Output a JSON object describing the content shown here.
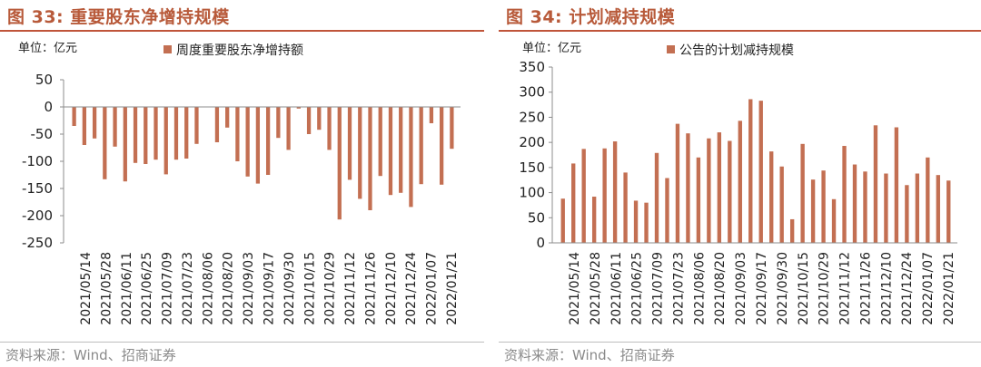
{
  "charts": [
    {
      "title": "图 33:  重要股东净增持规模",
      "unit": "单位：亿元",
      "source": "资料来源：Wind、招商证券"
    },
    {
      "title": "图 34:  计划减持规模",
      "unit": "单位：亿元",
      "source": "资料来源：Wind、招商证券"
    }
  ],
  "chart_data": [
    {
      "type": "bar",
      "color": "#C36F52",
      "series": [
        {
          "name": "周度重要股东净增持额",
          "values": [
            -35,
            -70,
            -58,
            -133,
            -73,
            -137,
            -103,
            -105,
            -97,
            -124,
            -97,
            -95,
            -68,
            null,
            -65,
            -38,
            -100,
            -128,
            -141,
            -125,
            -57,
            -79,
            -3,
            -50,
            -42,
            -79,
            -207,
            -134,
            -169,
            -190,
            -127,
            -162,
            -158,
            -184,
            -142,
            -30,
            -143,
            -77
          ]
        }
      ],
      "tick_labels": [
        "2021/05/14",
        "2021/05/28",
        "2021/06/11",
        "2021/06/25",
        "2021/07/09",
        "2021/07/23",
        "2021/08/06",
        "2021/08/20",
        "2021/09/03",
        "2021/09/17",
        "2021/09/30",
        "2021/10/15",
        "2021/10/29",
        "2021/11/12",
        "2021/11/26",
        "2021/12/10",
        "2021/12/24",
        "2022/01/07",
        "2022/01/21"
      ],
      "ylim": [
        -250,
        50
      ],
      "yticks": [
        50,
        0,
        -50,
        -100,
        -150,
        -200,
        -250
      ],
      "grid": false,
      "legend": "top"
    },
    {
      "type": "bar",
      "color": "#C36F52",
      "series": [
        {
          "name": "公告的计划减持规模",
          "values": [
            88,
            158,
            187,
            92,
            188,
            202,
            140,
            84,
            80,
            179,
            129,
            237,
            218,
            170,
            208,
            220,
            203,
            243,
            286,
            283,
            182,
            152,
            47,
            197,
            126,
            144,
            87,
            193,
            156,
            142,
            234,
            138,
            230,
            115,
            138,
            170,
            135,
            124
          ]
        }
      ],
      "tick_labels": [
        "2021/05/14",
        "2021/05/28",
        "2021/06/11",
        "2021/06/25",
        "2021/07/09",
        "2021/07/23",
        "2021/08/06",
        "2021/08/20",
        "2021/09/03",
        "2021/09/17",
        "2021/09/30",
        "2021/10/15",
        "2021/10/29",
        "2021/11/12",
        "2021/11/26",
        "2021/12/10",
        "2021/12/24",
        "2022/01/07",
        "2022/01/21"
      ],
      "ylim": [
        0,
        350
      ],
      "yticks": [
        0,
        50,
        100,
        150,
        200,
        250,
        300,
        350
      ],
      "grid": false,
      "legend": "top"
    }
  ]
}
